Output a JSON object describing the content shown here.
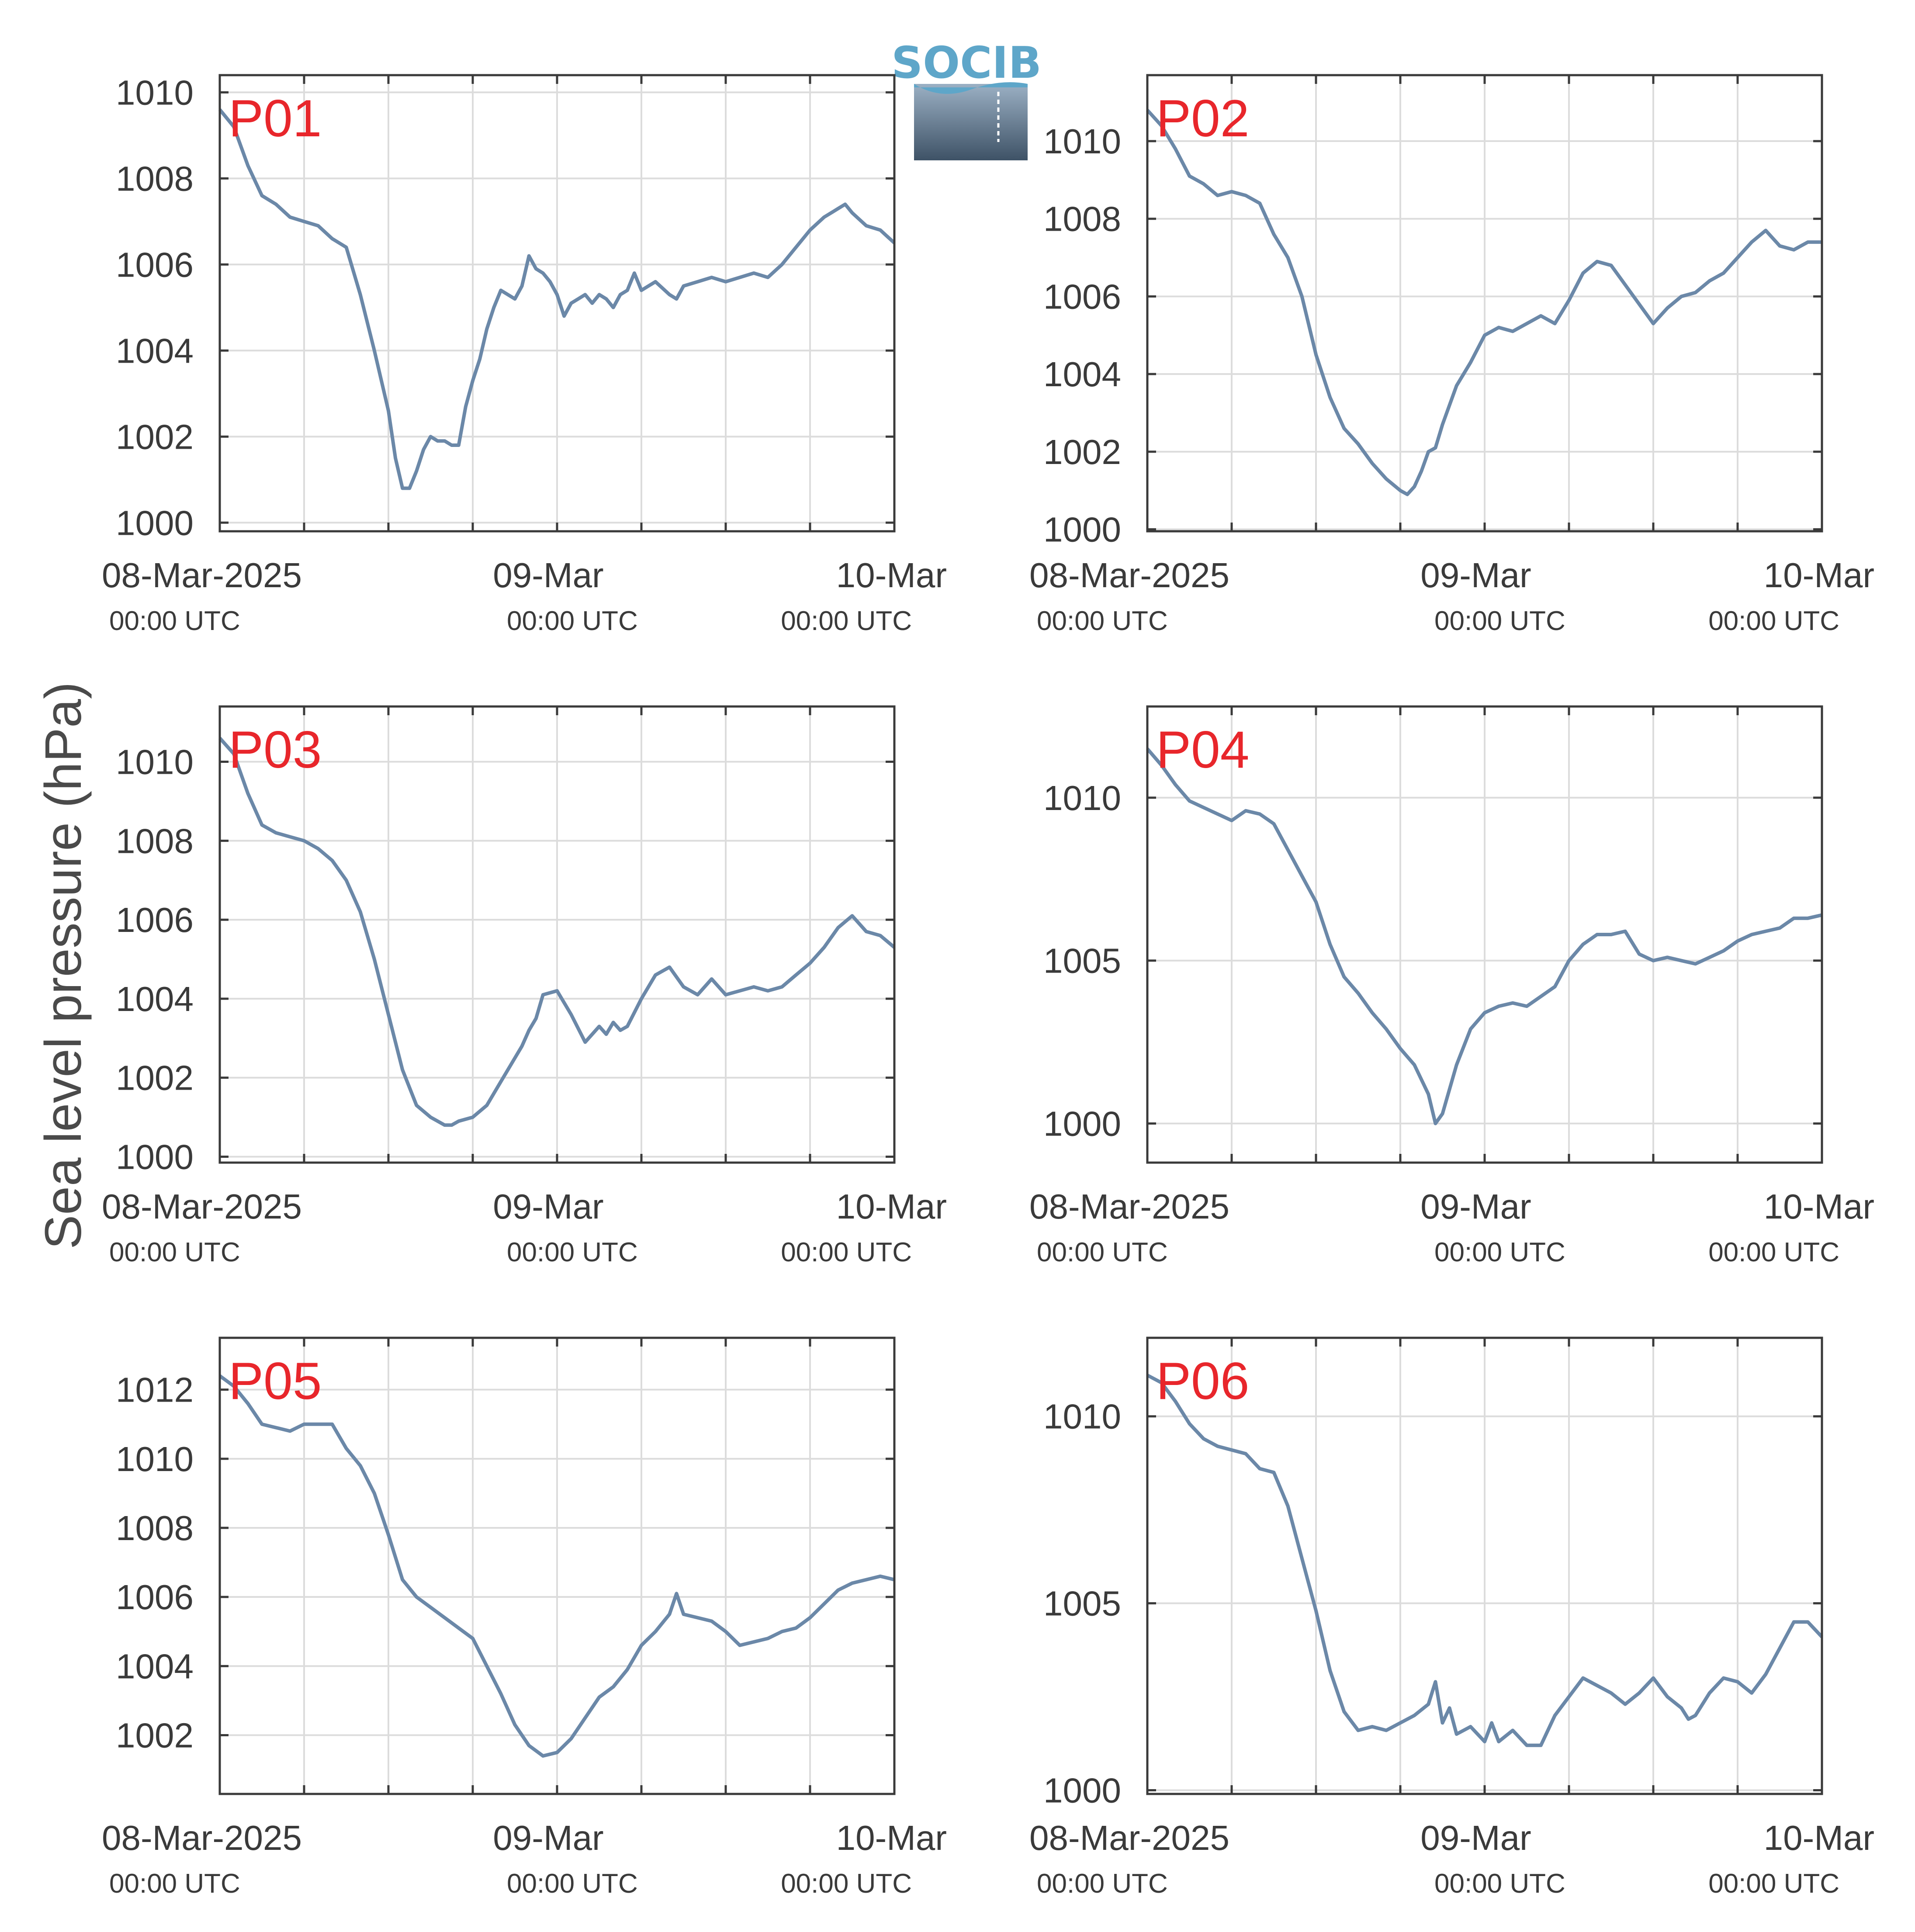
{
  "figure": {
    "ylabel": "Sea level pressure (hPa)",
    "logo_text": "SOCIB",
    "colors": {
      "line": "#6b88a8",
      "panel_label": "#e8262b",
      "grid": "#dcdcdc",
      "axes": "#3a3a3a",
      "logo_top": "#5ea6c9",
      "logo_bottom": "#3e5266"
    },
    "x_ticks": [
      {
        "main": "08-Mar-2025",
        "sub": "00:00 UTC"
      },
      {
        "main": "09-Mar",
        "sub": "00:00 UTC"
      },
      {
        "main": "10-Mar",
        "sub": "00:00 UTC"
      }
    ]
  },
  "chart_data": [
    {
      "type": "line",
      "label": "P01",
      "xlabel": "",
      "ylabel": "Sea level pressure (hPa)",
      "x_unit": "hours since 08-Mar-2025 00:00 UTC",
      "xlim": [
        0,
        48
      ],
      "ylim": [
        999.8,
        1010.4
      ],
      "yticks": [
        1000,
        1002,
        1004,
        1006,
        1008,
        1010
      ],
      "x": [
        0,
        1,
        2,
        3,
        4,
        5,
        6,
        7,
        8,
        9,
        10,
        11,
        12,
        12.5,
        13,
        13.5,
        14,
        14.5,
        15,
        15.5,
        16,
        16.5,
        17,
        17.5,
        18,
        18.5,
        19,
        19.5,
        20,
        21,
        21.5,
        22,
        22.5,
        23,
        23.5,
        24,
        24.5,
        25,
        25.5,
        26,
        26.5,
        27,
        27.5,
        28,
        28.5,
        29,
        29.5,
        30,
        30.5,
        31,
        32,
        32.5,
        33,
        34,
        35,
        36,
        37,
        38,
        39,
        40,
        41,
        42,
        43,
        43.5,
        44,
        44.5,
        45,
        46,
        47,
        48
      ],
      "y": [
        1009.6,
        1009.2,
        1008.3,
        1007.6,
        1007.4,
        1007.1,
        1007.0,
        1006.9,
        1006.6,
        1006.4,
        1005.3,
        1004.0,
        1002.6,
        1001.5,
        1000.8,
        1000.8,
        1001.2,
        1001.7,
        1002.0,
        1001.9,
        1001.9,
        1001.8,
        1001.8,
        1002.7,
        1003.3,
        1003.8,
        1004.5,
        1005.0,
        1005.4,
        1005.2,
        1005.5,
        1006.2,
        1005.9,
        1005.8,
        1005.6,
        1005.3,
        1004.8,
        1005.1,
        1005.2,
        1005.3,
        1005.1,
        1005.3,
        1005.2,
        1005.0,
        1005.3,
        1005.4,
        1005.8,
        1005.4,
        1005.5,
        1005.6,
        1005.3,
        1005.2,
        1005.5,
        1005.6,
        1005.7,
        1005.6,
        1005.7,
        1005.8,
        1005.7,
        1006.0,
        1006.4,
        1006.8,
        1007.1,
        1007.2,
        1007.3,
        1007.4,
        1007.2,
        1006.9,
        1006.8,
        1006.5
      ]
    },
    {
      "type": "line",
      "label": "P02",
      "xlabel": "",
      "ylabel": "Sea level pressure (hPa)",
      "x_unit": "hours since 08-Mar-2025 00:00 UTC",
      "xlim": [
        0,
        48
      ],
      "ylim": [
        999.95,
        1011.7
      ],
      "yticks": [
        1000,
        1002,
        1004,
        1006,
        1008,
        1010
      ],
      "x": [
        0,
        1,
        2,
        3,
        4,
        5,
        6,
        7,
        8,
        9,
        10,
        11,
        12,
        13,
        14,
        15,
        16,
        17,
        18,
        18.5,
        19,
        19.5,
        20,
        20.5,
        21,
        22,
        23,
        24,
        25,
        26,
        27,
        28,
        29,
        30,
        31,
        32,
        33,
        34,
        35,
        36,
        37,
        38,
        39,
        40,
        41,
        42,
        43,
        44,
        45,
        46,
        47,
        48
      ],
      "y": [
        1010.8,
        1010.4,
        1009.8,
        1009.1,
        1008.9,
        1008.6,
        1008.7,
        1008.6,
        1008.4,
        1007.6,
        1007.0,
        1006.0,
        1004.5,
        1003.4,
        1002.6,
        1002.2,
        1001.7,
        1001.3,
        1001.0,
        1000.9,
        1001.1,
        1001.5,
        1002.0,
        1002.1,
        1002.7,
        1003.7,
        1004.3,
        1005.0,
        1005.2,
        1005.1,
        1005.3,
        1005.5,
        1005.3,
        1005.9,
        1006.6,
        1006.9,
        1006.8,
        1006.3,
        1005.8,
        1005.3,
        1005.7,
        1006.0,
        1006.1,
        1006.4,
        1006.6,
        1007.0,
        1007.4,
        1007.7,
        1007.3,
        1007.2,
        1007.4,
        1007.4
      ]
    },
    {
      "type": "line",
      "label": "P03",
      "xlabel": "",
      "ylabel": "Sea level pressure (hPa)",
      "x_unit": "hours since 08-Mar-2025 00:00 UTC",
      "xlim": [
        0,
        48
      ],
      "ylim": [
        999.85,
        1011.4
      ],
      "yticks": [
        1000,
        1002,
        1004,
        1006,
        1008,
        1010
      ],
      "x": [
        0,
        1,
        2,
        3,
        4,
        5,
        6,
        7,
        8,
        9,
        10,
        11,
        12,
        13,
        14,
        15,
        16,
        16.5,
        17,
        18,
        19,
        20,
        21,
        21.5,
        22,
        22.5,
        23,
        24,
        25,
        26,
        27,
        27.5,
        28,
        28.5,
        29,
        30,
        31,
        32,
        33,
        34,
        35,
        36,
        37,
        38,
        39,
        40,
        41,
        42,
        43,
        44,
        45,
        46,
        47,
        48
      ],
      "y": [
        1010.6,
        1010.2,
        1009.2,
        1008.4,
        1008.2,
        1008.1,
        1008.0,
        1007.8,
        1007.5,
        1007.0,
        1006.2,
        1005.0,
        1003.6,
        1002.2,
        1001.3,
        1001.0,
        1000.8,
        1000.8,
        1000.9,
        1001.0,
        1001.3,
        1001.9,
        1002.5,
        1002.8,
        1003.2,
        1003.5,
        1004.1,
        1004.2,
        1003.6,
        1002.9,
        1003.3,
        1003.1,
        1003.4,
        1003.2,
        1003.3,
        1004.0,
        1004.6,
        1004.8,
        1004.3,
        1004.1,
        1004.5,
        1004.1,
        1004.2,
        1004.3,
        1004.2,
        1004.3,
        1004.6,
        1004.9,
        1005.3,
        1005.8,
        1006.1,
        1005.7,
        1005.6,
        1005.3
      ]
    },
    {
      "type": "line",
      "label": "P04",
      "xlabel": "",
      "ylabel": "Sea level pressure (hPa)",
      "x_unit": "hours since 08-Mar-2025 00:00 UTC",
      "xlim": [
        0,
        48
      ],
      "ylim": [
        998.8,
        1012.8
      ],
      "yticks": [
        1000,
        1005,
        1010
      ],
      "x": [
        0,
        1,
        2,
        3,
        4,
        5,
        6,
        7,
        8,
        9,
        10,
        11,
        12,
        13,
        14,
        15,
        16,
        17,
        18,
        19,
        20,
        20.5,
        21,
        22,
        23,
        24,
        25,
        26,
        27,
        28,
        29,
        30,
        31,
        32,
        33,
        34,
        35,
        36,
        37,
        38,
        39,
        40,
        41,
        42,
        43,
        44,
        45,
        46,
        47,
        48
      ],
      "y": [
        1011.5,
        1011.0,
        1010.4,
        1009.9,
        1009.7,
        1009.5,
        1009.3,
        1009.6,
        1009.5,
        1009.2,
        1008.4,
        1007.6,
        1006.8,
        1005.5,
        1004.5,
        1004.0,
        1003.4,
        1002.9,
        1002.3,
        1001.8,
        1000.9,
        1000.0,
        1000.3,
        1001.8,
        1002.9,
        1003.4,
        1003.6,
        1003.7,
        1003.6,
        1003.9,
        1004.2,
        1005.0,
        1005.5,
        1005.8,
        1005.8,
        1005.9,
        1005.2,
        1005.0,
        1005.1,
        1005.0,
        1004.9,
        1005.1,
        1005.3,
        1005.6,
        1005.8,
        1005.9,
        1006.0,
        1006.3,
        1006.3,
        1006.4
      ]
    },
    {
      "type": "line",
      "label": "P05",
      "xlabel": "",
      "ylabel": "Sea level pressure (hPa)",
      "x_unit": "hours since 08-Mar-2025 00:00 UTC",
      "xlim": [
        0,
        48
      ],
      "ylim": [
        1000.3,
        1013.5
      ],
      "yticks": [
        1002,
        1004,
        1006,
        1008,
        1010,
        1012
      ],
      "x": [
        0,
        1,
        2,
        3,
        4,
        5,
        6,
        7,
        8,
        9,
        10,
        11,
        12,
        13,
        14,
        15,
        16,
        17,
        18,
        19,
        20,
        21,
        22,
        23,
        24,
        25,
        26,
        27,
        28,
        29,
        30,
        31,
        32,
        32.5,
        33,
        34,
        35,
        36,
        37,
        38,
        39,
        40,
        41,
        42,
        43,
        44,
        45,
        46,
        47,
        48
      ],
      "y": [
        1012.4,
        1012.1,
        1011.6,
        1011.0,
        1010.9,
        1010.8,
        1011.0,
        1011.0,
        1011.0,
        1010.3,
        1009.8,
        1009.0,
        1007.8,
        1006.5,
        1006.0,
        1005.7,
        1005.4,
        1005.1,
        1004.8,
        1004.0,
        1003.2,
        1002.3,
        1001.7,
        1001.4,
        1001.5,
        1001.9,
        1002.5,
        1003.1,
        1003.4,
        1003.9,
        1004.6,
        1005.0,
        1005.5,
        1006.1,
        1005.5,
        1005.4,
        1005.3,
        1005.0,
        1004.6,
        1004.7,
        1004.8,
        1005.0,
        1005.1,
        1005.4,
        1005.8,
        1006.2,
        1006.4,
        1006.5,
        1006.6,
        1006.5
      ]
    },
    {
      "type": "line",
      "label": "P06",
      "xlabel": "",
      "ylabel": "Sea level pressure (hPa)",
      "x_unit": "hours since 08-Mar-2025 00:00 UTC",
      "xlim": [
        0,
        48
      ],
      "ylim": [
        999.9,
        1012.1
      ],
      "yticks": [
        1000,
        1005,
        1010
      ],
      "x": [
        0,
        1,
        2,
        3,
        4,
        5,
        6,
        7,
        8,
        9,
        10,
        11,
        12,
        13,
        14,
        15,
        16,
        17,
        18,
        19,
        20,
        20.5,
        21,
        21.5,
        22,
        23,
        24,
        24.5,
        25,
        26,
        27,
        28,
        29,
        30,
        31,
        32,
        33,
        34,
        35,
        36,
        37,
        38,
        38.5,
        39,
        40,
        41,
        42,
        43,
        44,
        45,
        46,
        47,
        48
      ],
      "y": [
        1011.1,
        1010.9,
        1010.4,
        1009.8,
        1009.4,
        1009.2,
        1009.1,
        1009.0,
        1008.6,
        1008.5,
        1007.6,
        1006.2,
        1004.8,
        1003.2,
        1002.1,
        1001.6,
        1001.7,
        1001.6,
        1001.8,
        1002.0,
        1002.3,
        1002.9,
        1001.8,
        1002.2,
        1001.5,
        1001.7,
        1001.3,
        1001.8,
        1001.3,
        1001.6,
        1001.2,
        1001.2,
        1002.0,
        1002.5,
        1003.0,
        1002.8,
        1002.6,
        1002.3,
        1002.6,
        1003.0,
        1002.5,
        1002.2,
        1001.9,
        1002.0,
        1002.6,
        1003.0,
        1002.9,
        1002.6,
        1003.1,
        1003.8,
        1004.5,
        1004.5,
        1004.1
      ]
    }
  ]
}
